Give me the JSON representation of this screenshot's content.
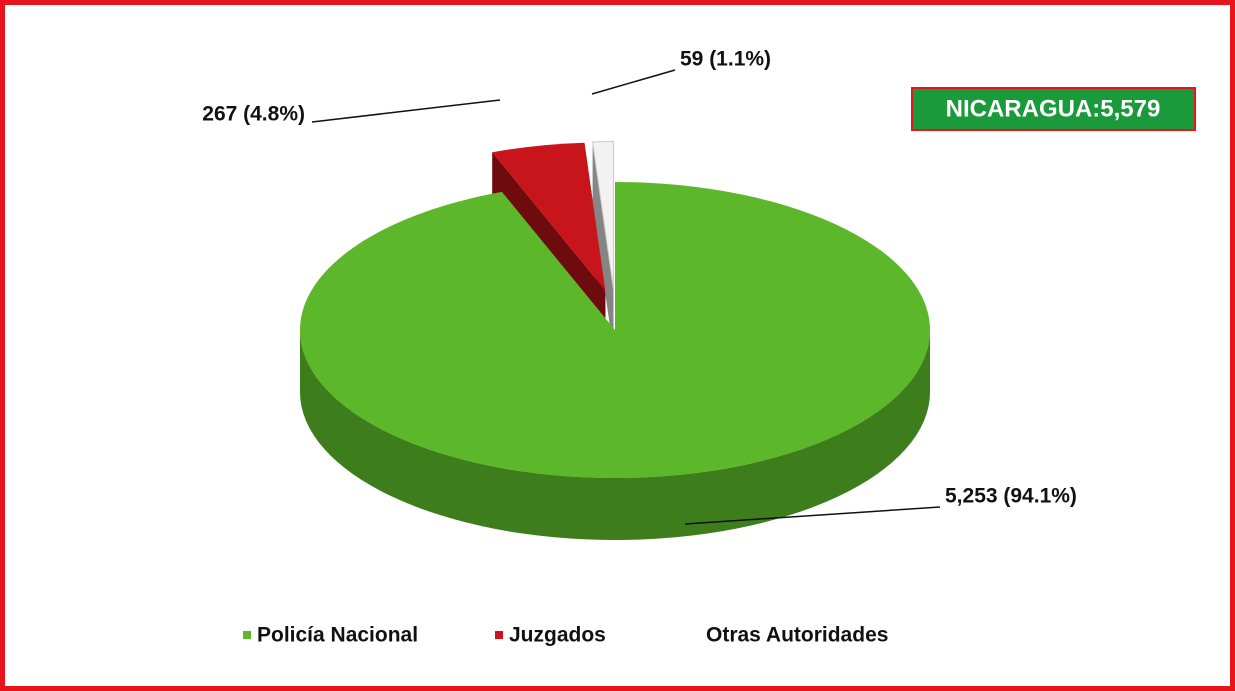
{
  "chart_data": {
    "type": "pie",
    "annotation": "NICARAGUA:5,579",
    "categories": [
      "Policía Nacional",
      "Juzgados",
      "Otras Autoridades"
    ],
    "values": [
      5253,
      267,
      59
    ],
    "value_labels": [
      "5,253 (94.1%)",
      "267 (4.8%)",
      "59 (1.1%)"
    ],
    "colors": [
      "#5cb82a",
      "#c8151b",
      "#f2f2f2"
    ],
    "legend": "bottom"
  }
}
